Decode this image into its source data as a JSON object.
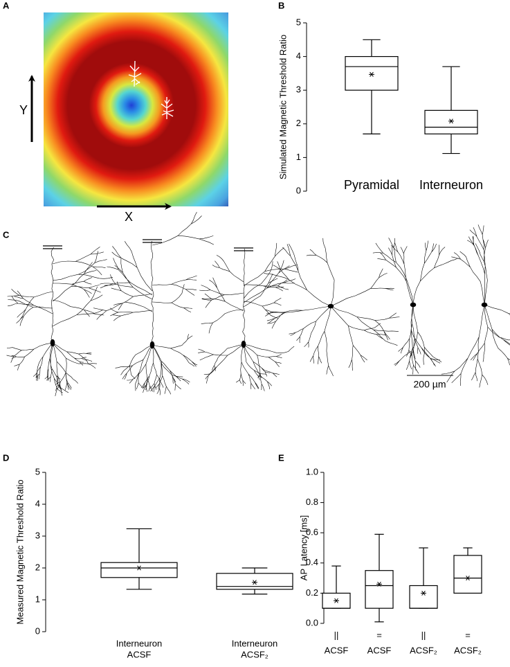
{
  "panels": [
    "A",
    "B",
    "C",
    "D",
    "E"
  ],
  "panel_a": {
    "x_label": "X",
    "y_label": "Y"
  },
  "panel_c": {
    "scale_label": "200 µm"
  },
  "chart_data": [
    {
      "type": "box",
      "ylabel": "Simulated Magnetic Threshold Ratio",
      "categories": [
        [
          "Pyramidal"
        ],
        [
          "Interneuron"
        ]
      ],
      "boxes": [
        {
          "whislo": 1.7,
          "q1": 3.0,
          "med": 3.7,
          "q3": 4.0,
          "whishi": 4.5,
          "mean": 3.47
        },
        {
          "whislo": 1.12,
          "q1": 1.7,
          "med": 1.9,
          "q3": 2.4,
          "whishi": 3.7,
          "mean": 2.08
        }
      ],
      "ylim": [
        0,
        5
      ],
      "yticks": [
        0,
        1,
        2,
        3,
        4,
        5
      ]
    },
    {
      "type": "box",
      "ylabel": "Measured Magnetic Threshold Ratio",
      "categories": [
        [
          "Interneuron",
          "ACSF"
        ],
        [
          "Interneuron",
          "ACSF₂"
        ]
      ],
      "boxes": [
        {
          "whislo": 1.33,
          "q1": 1.7,
          "med": 2.0,
          "q3": 2.17,
          "whishi": 3.23,
          "mean": 2.0
        },
        {
          "whislo": 1.18,
          "q1": 1.33,
          "med": 1.42,
          "q3": 1.83,
          "whishi": 2.0,
          "mean": 1.55
        }
      ],
      "ylim": [
        0,
        5
      ],
      "yticks": [
        0,
        1,
        2,
        3,
        4,
        5
      ]
    },
    {
      "type": "box",
      "ylabel": "AP Latency [ms]",
      "categories": [
        [
          "||",
          "ACSF"
        ],
        [
          "=",
          "ACSF"
        ],
        [
          "||",
          "ACSF₂"
        ],
        [
          "=",
          "ACSF₂"
        ]
      ],
      "boxes": [
        {
          "whislo": 0.1,
          "q1": 0.1,
          "med": 0.1,
          "q3": 0.2,
          "whishi": 0.38,
          "mean": 0.15
        },
        {
          "whislo": 0.01,
          "q1": 0.1,
          "med": 0.25,
          "q3": 0.35,
          "whishi": 0.59,
          "mean": 0.26
        },
        {
          "whislo": 0.1,
          "q1": 0.1,
          "med": 0.1,
          "q3": 0.25,
          "whishi": 0.5,
          "mean": 0.2
        },
        {
          "whislo": 0.2,
          "q1": 0.2,
          "med": 0.3,
          "q3": 0.45,
          "whishi": 0.5,
          "mean": 0.3
        }
      ],
      "ylim": [
        0,
        1.0
      ],
      "yticks": [
        {
          "value": 0,
          "label": "0.0"
        },
        0.2,
        0.4,
        0.6,
        0.8,
        {
          "value": 1.0,
          "label": "1.0"
        }
      ]
    }
  ]
}
